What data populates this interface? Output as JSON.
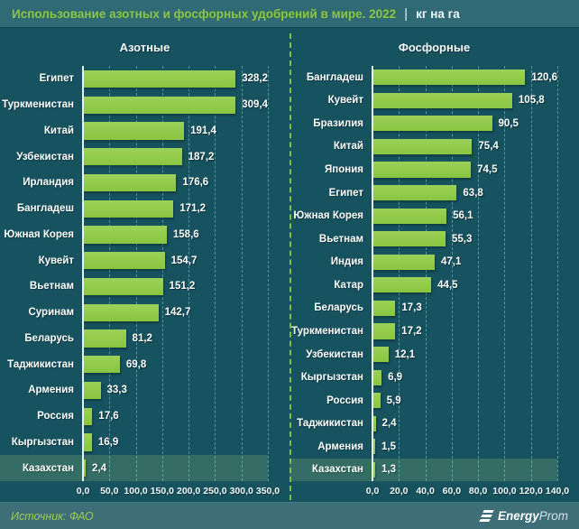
{
  "header": {
    "title": "Использование азотных и фосфорных удобрений в мире. 2022",
    "separator": "|",
    "unit": "кг на га"
  },
  "footer": {
    "source": "Источник: ФАО",
    "logo": {
      "icon": "energyprom-stripes-icon",
      "bold": "Energy",
      "light": "Prom"
    }
  },
  "colors": {
    "title_bar_bg": "#2f6a75",
    "main_bg": "#17525f",
    "footer_bg": "#3e6e77",
    "bar_green": "#8dc74a",
    "accent_green": "#8dc63f",
    "gridline_dash": "#7dcdde",
    "divider_dash": "#7fc344",
    "highlight_row_bg": "#2c6a63",
    "text": "#ffffff"
  },
  "chart_data": [
    {
      "type": "bar",
      "orientation": "horizontal",
      "title": "Азотные",
      "unit": "кг на га",
      "xlim": [
        0,
        350
      ],
      "xtick_values": [
        0,
        50,
        100,
        150,
        200,
        250,
        300,
        350
      ],
      "xticks": [
        "0,0",
        "50,0",
        "100,0",
        "150,0",
        "200,0",
        "250,0",
        "300,0",
        "350,0"
      ],
      "grid": true,
      "legend": false,
      "decimal_separator": ",",
      "categories": [
        "Египет",
        "Туркменистан",
        "Китай",
        "Узбекистан",
        "Ирландия",
        "Бангладеш",
        "Южная Корея",
        "Кувейт",
        "Вьетнам",
        "Суринам",
        "Беларусь",
        "Таджикистан",
        "Армения",
        "Россия",
        "Кыргызстан",
        "Казахстан"
      ],
      "values": [
        328.2,
        309.4,
        191.4,
        187.2,
        176.6,
        171.2,
        158.6,
        154.7,
        151.2,
        142.7,
        81.2,
        69.8,
        33.3,
        17.6,
        16.9,
        2.4
      ],
      "highlight_category": "Казахстан"
    },
    {
      "type": "bar",
      "orientation": "horizontal",
      "title": "Фосфорные",
      "unit": "кг на га",
      "xlim": [
        0,
        140
      ],
      "xtick_values": [
        0,
        20,
        40,
        60,
        80,
        100,
        120,
        140
      ],
      "xticks": [
        "0,0",
        "20,0",
        "40,0",
        "60,0",
        "80,0",
        "100,0",
        "120,0",
        "140,0"
      ],
      "grid": true,
      "legend": false,
      "decimal_separator": ",",
      "categories": [
        "Бангладеш",
        "Кувейт",
        "Бразилия",
        "Китай",
        "Япония",
        "Египет",
        "Южная Корея",
        "Вьетнам",
        "Индия",
        "Катар",
        "Беларусь",
        "Туркменистан",
        "Узбекистан",
        "Кыргызстан",
        "Россия",
        "Таджикистан",
        "Армения",
        "Казахстан"
      ],
      "values": [
        120.6,
        105.8,
        90.5,
        75.4,
        74.5,
        63.8,
        56.1,
        55.3,
        47.1,
        44.5,
        17.3,
        17.2,
        12.1,
        6.9,
        5.9,
        2.4,
        1.5,
        1.3
      ],
      "highlight_category": "Казахстан"
    }
  ]
}
